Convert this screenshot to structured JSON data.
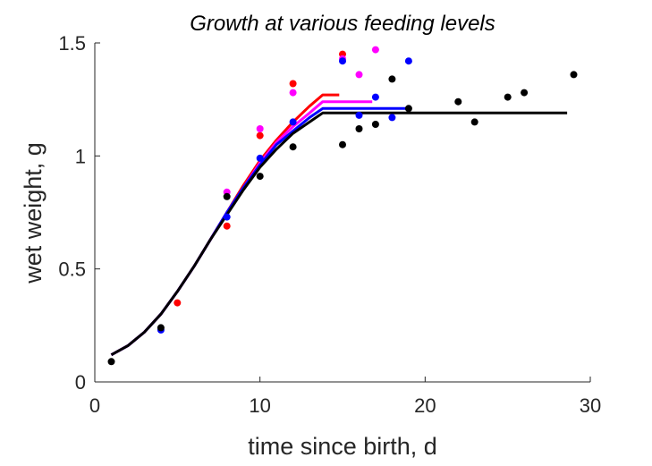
{
  "chart_data": {
    "type": "scatter",
    "title": "Growth at various feeding levels",
    "xlabel": "time since birth, d",
    "ylabel": "wet weight, g",
    "xlim": [
      0,
      30
    ],
    "ylim": [
      0,
      1.5
    ],
    "xticks": [
      0,
      10,
      20,
      30
    ],
    "yticks": [
      0,
      0.5,
      1,
      1.5
    ],
    "xtick_labels": [
      "0",
      "10",
      "20",
      "30"
    ],
    "ytick_labels": [
      "0",
      "0.5",
      "1",
      "1.5"
    ],
    "grid": false,
    "legend": "none",
    "series": [
      {
        "color": "#ff0000",
        "points": [
          [
            5,
            0.35
          ],
          [
            8,
            0.69
          ],
          [
            10,
            1.09
          ],
          [
            12,
            1.32
          ],
          [
            15,
            1.45
          ]
        ],
        "curve": [
          [
            1,
            0.12
          ],
          [
            2,
            0.16
          ],
          [
            3,
            0.22
          ],
          [
            4,
            0.3
          ],
          [
            5,
            0.4
          ],
          [
            6,
            0.51
          ],
          [
            7,
            0.63
          ],
          [
            8,
            0.75
          ],
          [
            9,
            0.87
          ],
          [
            10,
            0.98
          ],
          [
            11,
            1.07
          ],
          [
            12,
            1.15
          ],
          [
            13,
            1.22
          ],
          [
            13.8,
            1.27
          ],
          [
            14.8,
            1.27
          ]
        ]
      },
      {
        "color": "#ff00ff",
        "points": [
          [
            8,
            0.84
          ],
          [
            10,
            1.12
          ],
          [
            12,
            1.28
          ],
          [
            15,
            1.43
          ],
          [
            16,
            1.36
          ],
          [
            17,
            1.47
          ]
        ],
        "curve": [
          [
            1,
            0.12
          ],
          [
            2,
            0.16
          ],
          [
            3,
            0.22
          ],
          [
            4,
            0.3
          ],
          [
            5,
            0.4
          ],
          [
            6,
            0.51
          ],
          [
            7,
            0.63
          ],
          [
            8,
            0.75
          ],
          [
            9,
            0.86
          ],
          [
            10,
            0.97
          ],
          [
            11,
            1.06
          ],
          [
            12,
            1.13
          ],
          [
            13,
            1.19
          ],
          [
            13.8,
            1.24
          ],
          [
            16.8,
            1.24
          ]
        ]
      },
      {
        "color": "#0000ff",
        "points": [
          [
            4,
            0.23
          ],
          [
            8,
            0.73
          ],
          [
            10,
            0.99
          ],
          [
            12,
            1.15
          ],
          [
            15,
            1.42
          ],
          [
            16,
            1.18
          ],
          [
            17,
            1.26
          ],
          [
            18,
            1.17
          ],
          [
            19,
            1.42
          ]
        ],
        "curve": [
          [
            1,
            0.12
          ],
          [
            2,
            0.16
          ],
          [
            3,
            0.22
          ],
          [
            4,
            0.3
          ],
          [
            5,
            0.4
          ],
          [
            6,
            0.51
          ],
          [
            7,
            0.63
          ],
          [
            8,
            0.75
          ],
          [
            9,
            0.86
          ],
          [
            10,
            0.96
          ],
          [
            11,
            1.05
          ],
          [
            12,
            1.11
          ],
          [
            13,
            1.17
          ],
          [
            13.8,
            1.21
          ],
          [
            18.9,
            1.21
          ]
        ]
      },
      {
        "color": "#000000",
        "points": [
          [
            1,
            0.09
          ],
          [
            4,
            0.24
          ],
          [
            8,
            0.82
          ],
          [
            10,
            0.91
          ],
          [
            12,
            1.04
          ],
          [
            15,
            1.05
          ],
          [
            16,
            1.12
          ],
          [
            17,
            1.14
          ],
          [
            18,
            1.34
          ],
          [
            19,
            1.21
          ],
          [
            22,
            1.24
          ],
          [
            23,
            1.15
          ],
          [
            25,
            1.26
          ],
          [
            26,
            1.28
          ],
          [
            29,
            1.36
          ]
        ],
        "curve": [
          [
            1,
            0.12
          ],
          [
            2,
            0.16
          ],
          [
            3,
            0.22
          ],
          [
            4,
            0.3
          ],
          [
            5,
            0.4
          ],
          [
            6,
            0.51
          ],
          [
            7,
            0.63
          ],
          [
            8,
            0.74
          ],
          [
            9,
            0.85
          ],
          [
            10,
            0.95
          ],
          [
            11,
            1.03
          ],
          [
            12,
            1.1
          ],
          [
            13,
            1.15
          ],
          [
            13.8,
            1.19
          ],
          [
            28.6,
            1.19
          ]
        ]
      }
    ]
  }
}
